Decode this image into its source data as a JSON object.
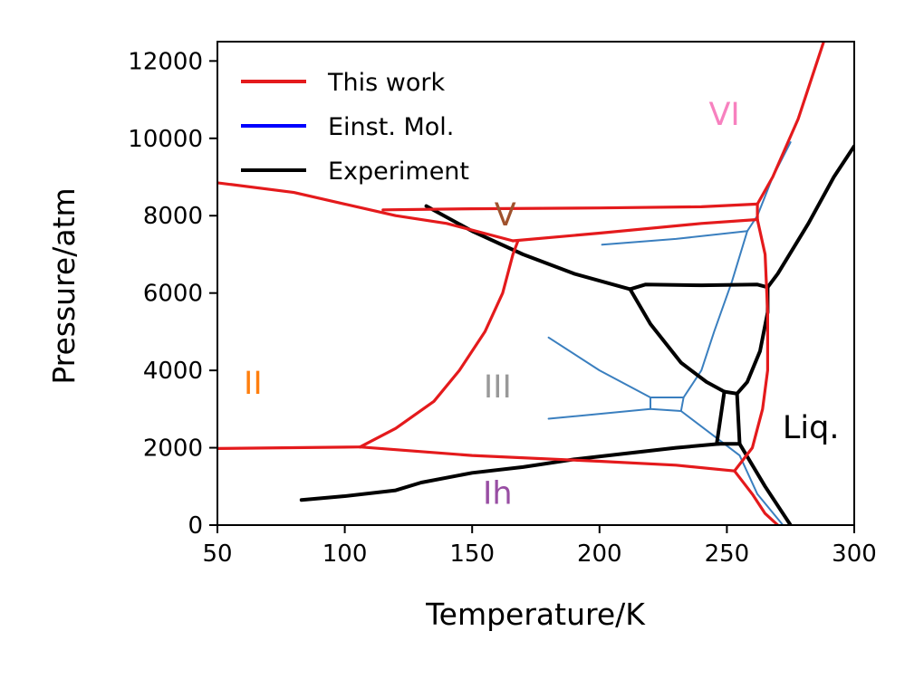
{
  "chart_data": {
    "type": "line",
    "xlabel": "Temperature/K",
    "ylabel": "Pressure/atm",
    "xlim": [
      50,
      300
    ],
    "ylim": [
      0,
      12500
    ],
    "xticks": [
      50,
      100,
      150,
      200,
      250,
      300
    ],
    "yticks": [
      0,
      2000,
      4000,
      6000,
      8000,
      10000,
      12000
    ],
    "legend_position": "top-left",
    "legend": [
      {
        "label": "This work",
        "color": "#e41a1c"
      },
      {
        "label": "Einst. Mol.",
        "color": "#0000ff"
      },
      {
        "label": "Experiment",
        "color": "#000000"
      }
    ],
    "phase_labels": [
      {
        "text": "II",
        "x": 64,
        "y": 3400,
        "color": "#ff7f0e"
      },
      {
        "text": "III",
        "x": 160,
        "y": 3300,
        "color": "#999999"
      },
      {
        "text": "Ih",
        "x": 160,
        "y": 550,
        "color": "#984ea3"
      },
      {
        "text": "V",
        "x": 163,
        "y": 7750,
        "color": "#a0522d"
      },
      {
        "text": "VI",
        "x": 249,
        "y": 10350,
        "color": "#f781bf"
      },
      {
        "text": "Liq.",
        "x": 283,
        "y": 2250,
        "color": "#000000"
      }
    ],
    "series": [
      {
        "name": "This work",
        "color": "#e41a1c",
        "segments": [
          [
            [
              50,
              8850
            ],
            [
              80,
              8600
            ],
            [
              100,
              8300
            ],
            [
              120,
              8000
            ],
            [
              140,
              7800
            ],
            [
              166,
              7350
            ]
          ],
          [
            [
              50,
              1980
            ],
            [
              106,
              2020
            ]
          ],
          [
            [
              106,
              2020
            ],
            [
              120,
              2500
            ],
            [
              135,
              3200
            ],
            [
              145,
              4000
            ],
            [
              155,
              5000
            ],
            [
              162,
              6000
            ],
            [
              166,
              7000
            ],
            [
              168,
              7350
            ]
          ],
          [
            [
              106,
              2020
            ],
            [
              150,
              1800
            ],
            [
              200,
              1650
            ],
            [
              230,
              1550
            ],
            [
              253,
              1400
            ]
          ],
          [
            [
              115,
              8150
            ],
            [
              150,
              8180
            ],
            [
              200,
              8200
            ],
            [
              240,
              8230
            ],
            [
              262,
              8300
            ]
          ],
          [
            [
              166,
              7350
            ],
            [
              200,
              7550
            ],
            [
              240,
              7800
            ],
            [
              262,
              7900
            ]
          ],
          [
            [
              253,
              1400
            ],
            [
              260,
              2000
            ],
            [
              264,
              3000
            ],
            [
              266,
              4000
            ],
            [
              266,
              5500
            ],
            [
              265,
              7000
            ],
            [
              262,
              7900
            ]
          ],
          [
            [
              262,
              7900
            ],
            [
              262,
              8300
            ],
            [
              268,
              9000
            ],
            [
              278,
              10500
            ],
            [
              288,
              12500
            ]
          ],
          [
            [
              253,
              1400
            ],
            [
              260,
              800
            ],
            [
              265,
              300
            ],
            [
              270,
              0
            ]
          ]
        ]
      },
      {
        "name": "Einst. Mol.",
        "color": "#3a7fbf",
        "segments": [
          [
            [
              201,
              7250
            ],
            [
              230,
              7400
            ],
            [
              258,
              7600
            ]
          ],
          [
            [
              258,
              7600
            ],
            [
              262,
              8000
            ],
            [
              268,
              9000
            ],
            [
              275,
              9900
            ]
          ],
          [
            [
              258,
              7600
            ],
            [
              252,
              6300
            ],
            [
              245,
              5000
            ],
            [
              240,
              4000
            ],
            [
              233,
              3300
            ]
          ],
          [
            [
              180,
              4850
            ],
            [
              200,
              4000
            ],
            [
              220,
              3300
            ]
          ],
          [
            [
              180,
              2750
            ],
            [
              220,
              3000
            ]
          ],
          [
            [
              220,
              3000
            ],
            [
              232,
              2950
            ]
          ],
          [
            [
              220,
              3300
            ],
            [
              233,
              3300
            ]
          ],
          [
            [
              220,
              3300
            ],
            [
              220,
              3000
            ]
          ],
          [
            [
              233,
              3300
            ],
            [
              232,
              2950
            ]
          ],
          [
            [
              232,
              2950
            ],
            [
              245,
              2300
            ],
            [
              255,
              1800
            ],
            [
              262,
              800
            ],
            [
              272,
              0
            ]
          ]
        ]
      },
      {
        "name": "Experiment",
        "color": "#000000",
        "segments": [
          [
            [
              83,
              650
            ],
            [
              100,
              750
            ],
            [
              120,
              900
            ],
            [
              130,
              1100
            ],
            [
              150,
              1350
            ],
            [
              170,
              1500
            ],
            [
              190,
              1700
            ],
            [
              210,
              1850
            ],
            [
              230,
              2000
            ],
            [
              247,
              2100
            ]
          ],
          [
            [
              132,
              8250
            ],
            [
              150,
              7600
            ],
            [
              170,
              7000
            ],
            [
              190,
              6500
            ],
            [
              212,
              6100
            ]
          ],
          [
            [
              212,
              6100
            ],
            [
              218,
              6220
            ],
            [
              240,
              6200
            ],
            [
              262,
              6220
            ],
            [
              266,
              6150
            ]
          ],
          [
            [
              212,
              6100
            ],
            [
              220,
              5200
            ],
            [
              232,
              4200
            ],
            [
              242,
              3700
            ],
            [
              249,
              3450
            ]
          ],
          [
            [
              249,
              3450
            ],
            [
              254,
              3400
            ]
          ],
          [
            [
              249,
              3450
            ],
            [
              246,
              2100
            ]
          ],
          [
            [
              254,
              3400
            ],
            [
              255,
              2100
            ]
          ],
          [
            [
              246,
              2100
            ],
            [
              255,
              2100
            ]
          ],
          [
            [
              255,
              2100
            ],
            [
              265,
              1000
            ],
            [
              275,
              0
            ]
          ],
          [
            [
              254,
              3400
            ],
            [
              258,
              3700
            ],
            [
              263,
              4500
            ],
            [
              266,
              5500
            ],
            [
              266,
              6150
            ]
          ],
          [
            [
              266,
              6150
            ],
            [
              270,
              6500
            ],
            [
              282,
              7800
            ],
            [
              292,
              9000
            ],
            [
              300,
              9800
            ]
          ]
        ]
      }
    ]
  }
}
